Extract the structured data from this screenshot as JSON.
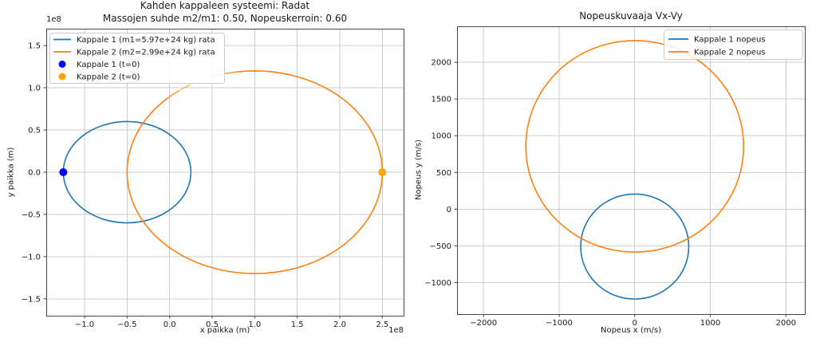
{
  "colors": {
    "line1": "#1f77b4",
    "line2": "#ff7f0e",
    "marker1": "#0000ff",
    "marker2": "#ffa500",
    "grid": "#cdcdcd",
    "spine": "#444444",
    "text": "#1a1a1a",
    "legend_border": "#cccccc",
    "background": "#ffffff"
  },
  "chart_data": [
    {
      "type": "line",
      "title": "Kahden kappaleen systeemi: Radat",
      "subtitle": "Massojen suhde m2/m1: 0.50, Nopeuskerroin: 0.60",
      "xlabel": "x paikka (m)",
      "ylabel": "y paikka (m)",
      "x_offset_text": "1e8",
      "y_offset_text": "1e8",
      "axis_multiplier": 100000000.0,
      "xlim": [
        -1.45,
        2.75
      ],
      "ylim": [
        -1.7,
        1.7
      ],
      "grid": true,
      "xticks": {
        "values": [
          -1.0,
          -0.5,
          0.0,
          0.5,
          1.0,
          1.5,
          2.0,
          2.5
        ],
        "labels": [
          "−1.0",
          "−0.5",
          "0.0",
          "0.5",
          "1.0",
          "1.5",
          "2.0",
          "2.5"
        ]
      },
      "yticks": {
        "values": [
          -1.5,
          -1.0,
          -0.5,
          0.0,
          0.5,
          1.0,
          1.5
        ],
        "labels": [
          "−1.5",
          "−1.0",
          "−0.5",
          "0.0",
          "0.5",
          "1.0",
          "1.5"
        ]
      },
      "series": [
        {
          "name": "Kappale 1 rata",
          "shape": "ellipse",
          "center": [
            -0.5,
            0
          ],
          "radii": [
            0.75,
            0.6
          ],
          "color": "#1f77b4"
        },
        {
          "name": "Kappale 2 rata",
          "shape": "ellipse",
          "center": [
            1.0,
            0
          ],
          "radii": [
            1.5,
            1.2
          ],
          "color": "#ff7f0e",
          "fade": {
            "from_deg": 98,
            "to_deg": 133
          }
        }
      ],
      "points": [
        {
          "name": "Kappale 1 (t=0)",
          "x": -1.25,
          "y": 0,
          "color": "#0000ff"
        },
        {
          "name": "Kappale 2 (t=0)",
          "x": 2.5,
          "y": 0,
          "color": "#ffa500"
        }
      ],
      "legend": {
        "loc": "upper left",
        "entries": [
          {
            "label": "Kappale 1 (m1=5.97e+24 kg) rata",
            "kind": "line",
            "color": "#1f77b4"
          },
          {
            "label": "Kappale 2 (m2=2.99e+24 kg) rata",
            "kind": "line",
            "color": "#ff7f0e"
          },
          {
            "label": "Kappale 1 (t=0)",
            "kind": "marker",
            "color": "#0000ff"
          },
          {
            "label": "Kappale 2 (t=0)",
            "kind": "marker",
            "color": "#ffa500"
          }
        ]
      }
    },
    {
      "type": "line",
      "title": "Nopeuskuvaaja Vx-Vy",
      "subtitle": "",
      "xlabel": "Nopeus x (m/s)",
      "ylabel": "Nopeus y (m/s)",
      "x_offset_text": "",
      "y_offset_text": "",
      "axis_multiplier": 1,
      "xlim": [
        -2350,
        2250
      ],
      "ylim": [
        -1430,
        2490
      ],
      "grid": true,
      "xticks": {
        "values": [
          -2000,
          -1000,
          0,
          1000,
          2000
        ],
        "labels": [
          "−2000",
          "−1000",
          "0",
          "1000",
          "2000"
        ]
      },
      "yticks": {
        "values": [
          -1000,
          -500,
          0,
          500,
          1000,
          1500,
          2000
        ],
        "labels": [
          "−1000",
          "−500",
          "0",
          "500",
          "1000",
          "1500",
          "2000"
        ]
      },
      "series": [
        {
          "name": "Kappale 1 nopeus",
          "shape": "ellipse",
          "center": [
            0,
            -510
          ],
          "radii": [
            715,
            715
          ],
          "color": "#1f77b4"
        },
        {
          "name": "Kappale 2 nopeus",
          "shape": "ellipse",
          "center": [
            0,
            855
          ],
          "radii": [
            1440,
            1440
          ],
          "color": "#ff7f0e"
        }
      ],
      "points": [],
      "legend": {
        "loc": "upper right",
        "entries": [
          {
            "label": "Kappale 1 nopeus",
            "kind": "line",
            "color": "#1f77b4"
          },
          {
            "label": "Kappale 2 nopeus",
            "kind": "line",
            "color": "#ff7f0e"
          }
        ]
      }
    }
  ]
}
